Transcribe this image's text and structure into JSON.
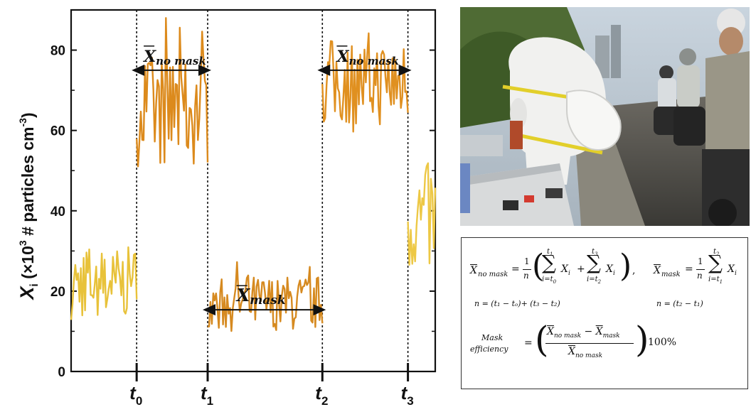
{
  "chart_data": {
    "type": "line",
    "ylabel_main": "X",
    "ylabel_sub": "i",
    "ylabel_rest": " (×10",
    "ylabel_exp": "3",
    "ylabel_unit": " # particles cm",
    "ylabel_unit_exp": "-3",
    "ylabel_close": ")",
    "ylim": [
      0,
      90
    ],
    "yticks": [
      "0",
      "20",
      "40",
      "60",
      "80"
    ],
    "ytick_values": [
      0,
      20,
      40,
      60,
      80
    ],
    "markers": [
      {
        "label": "t",
        "sub": "0",
        "x": 0.18
      },
      {
        "label": "t",
        "sub": "1",
        "x": 0.375
      },
      {
        "label": "t",
        "sub": "2",
        "x": 0.69
      },
      {
        "label": "t",
        "sub": "3",
        "x": 0.925
      }
    ],
    "xlim": [
      0,
      1
    ],
    "segments": [
      {
        "name": "before",
        "color": "#e8c23a",
        "x": [
          0,
          0.18
        ],
        "level": 22,
        "spread": 9
      },
      {
        "name": "no-mask-1",
        "color": "#dc8a1c",
        "x": [
          0.18,
          0.375
        ],
        "level": 65,
        "spread": 14
      },
      {
        "name": "mask",
        "color": "#d68a20",
        "x": [
          0.375,
          0.69
        ],
        "level": 17,
        "spread": 7
      },
      {
        "name": "no-mask-2",
        "color": "#e09020",
        "x": [
          0.69,
          0.925
        ],
        "level": 72,
        "spread": 11
      },
      {
        "name": "after",
        "color": "#edc845",
        "x": [
          0.925,
          1.0
        ],
        "level": 38,
        "spread": 14
      }
    ],
    "annotations": [
      {
        "text": "X",
        "sub": "no mask",
        "from": 0.18,
        "to": 0.375,
        "y": 75
      },
      {
        "text": "X",
        "sub": "mask",
        "from": 0.375,
        "to": 0.69,
        "y": 15
      },
      {
        "text": "X",
        "sub": "no mask",
        "from": 0.69,
        "to": 0.925,
        "y": 75
      }
    ]
  },
  "formula": {
    "lhs1": "X",
    "lhs1_sub": "no mask",
    "eq": "=",
    "one": "1",
    "n": "n",
    "sum_top_1": "t",
    "sum_top_1_sub": "1",
    "sum_bot_1": "i=t",
    "sum_bot_1_sub": "0",
    "sum_top_2": "t",
    "sum_top_2_sub": "3",
    "sum_bot_2": "i=t",
    "sum_bot_2_sub": "2",
    "xi": "X",
    "xi_sub": "i",
    "plus": "+",
    "comma": ",",
    "lhs2": "X",
    "lhs2_sub": "mask",
    "sum_top_3": "t",
    "sum_top_3_sub": "2",
    "sum_bot_3": "i=t",
    "sum_bot_3_sub": "1",
    "n_def_1": "n = (t₁ − tₒ)+ (t₃ − t₂)",
    "n_def_2": "n = (t₂ − t₁)",
    "eff_label_1": "Mask",
    "eff_label_2": "efficiency",
    "eff_num_a": "X",
    "eff_num_a_sub": "no mask",
    "eff_minus": " − ",
    "eff_num_b": "X",
    "eff_num_b_sub": "mask",
    "eff_den": "X",
    "eff_den_sub": "no mask",
    "eff_pct": "100%"
  },
  "photo": {
    "icon": "photo-mannequin-with-mask-in-traffic"
  }
}
